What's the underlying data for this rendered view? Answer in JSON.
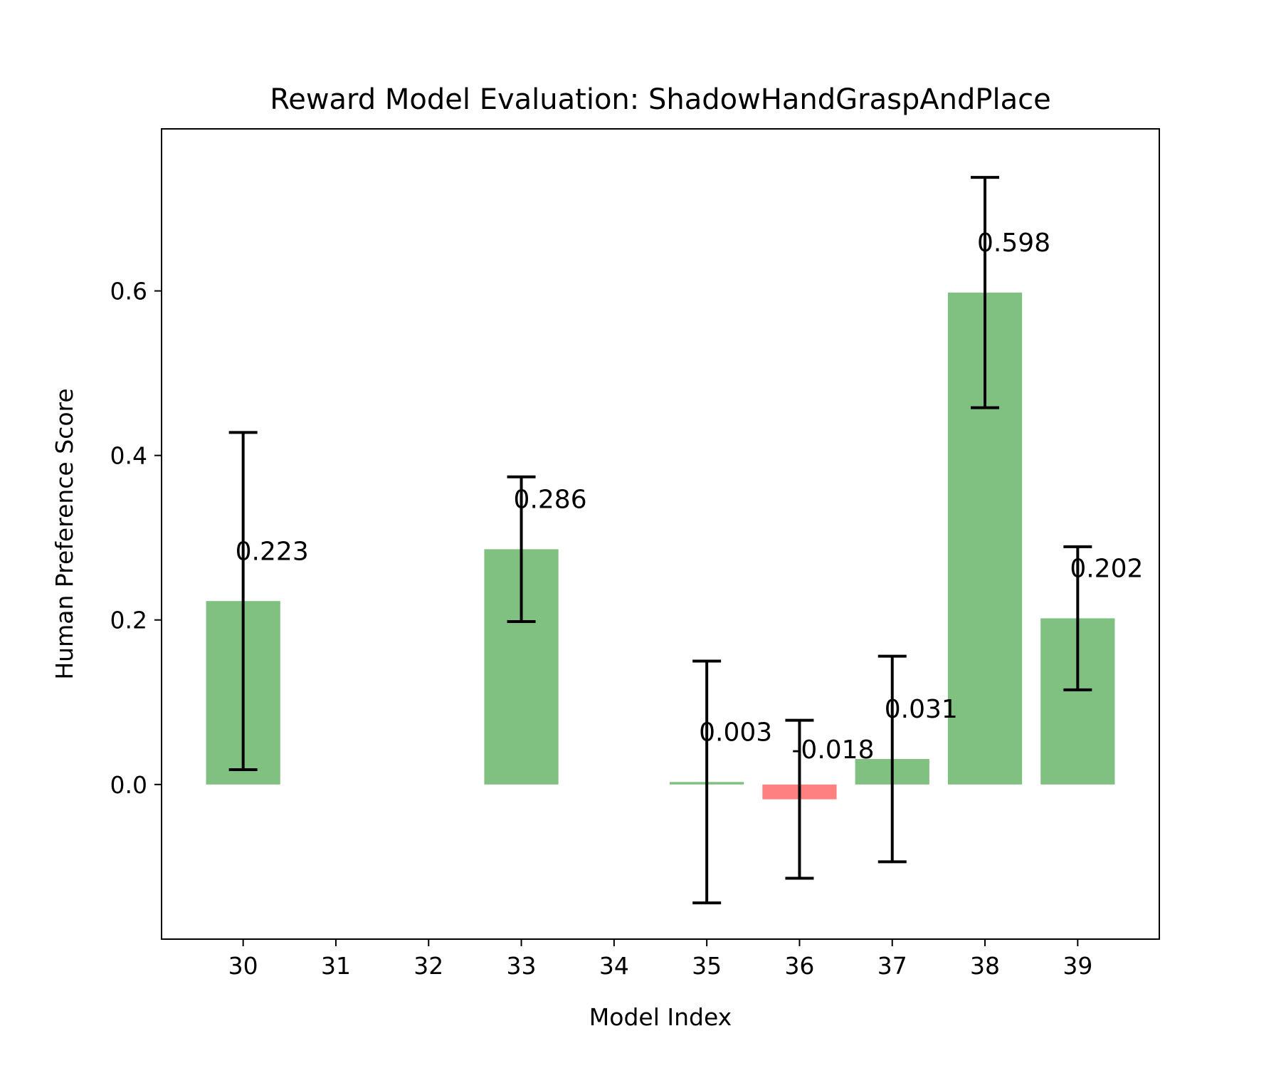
{
  "chart_data": {
    "type": "bar",
    "title": "Reward Model Evaluation: ShadowHandGraspAndPlace",
    "xlabel": "Model Index",
    "ylabel": "Human Preference Score",
    "xlim": [
      29.12,
      39.88
    ],
    "ylim": [
      -0.188,
      0.797
    ],
    "x_ticks": [
      30,
      31,
      32,
      33,
      34,
      35,
      36,
      37,
      38,
      39
    ],
    "y_ticks": [
      0.0,
      0.2,
      0.4,
      0.6
    ],
    "y_tick_labels": [
      "0.0",
      "0.2",
      "0.4",
      "0.6"
    ],
    "grid": false,
    "legend": "none",
    "bar_width": 0.8,
    "colors": {
      "positive": "#80c080",
      "negative": "#ff8080",
      "error_bar": "#000000"
    },
    "bars": [
      {
        "x": 30,
        "value": 0.223,
        "label": "0.223",
        "err_low": 0.018,
        "err_high": 0.428
      },
      {
        "x": 33,
        "value": 0.286,
        "label": "0.286",
        "err_low": 0.198,
        "err_high": 0.374
      },
      {
        "x": 35,
        "value": 0.003,
        "label": "0.003",
        "err_low": -0.144,
        "err_high": 0.15
      },
      {
        "x": 36,
        "value": -0.018,
        "label": "-0.018",
        "err_low": -0.114,
        "err_high": 0.078
      },
      {
        "x": 37,
        "value": 0.031,
        "label": "0.031",
        "err_low": -0.094,
        "err_high": 0.156
      },
      {
        "x": 38,
        "value": 0.598,
        "label": "0.598",
        "err_low": 0.458,
        "err_high": 0.738
      },
      {
        "x": 39,
        "value": 0.202,
        "label": "0.202",
        "err_low": 0.115,
        "err_high": 0.289
      }
    ]
  }
}
